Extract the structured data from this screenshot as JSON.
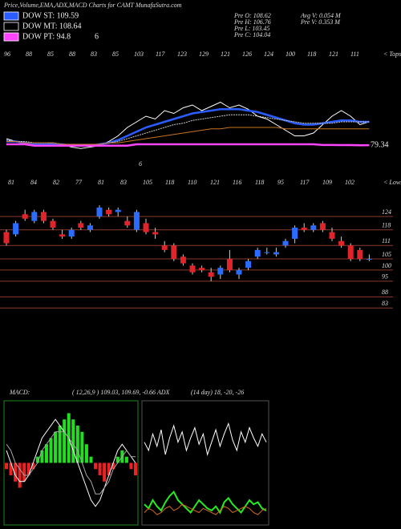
{
  "header": {
    "title": "Price,Volume,EMA,ADX,MACD Charts for CAMT MunafaSutra.com",
    "legend": [
      {
        "label": "DOW ST: 109.59",
        "color": "#2a5cff"
      },
      {
        "label": "DOW MT: 108.64",
        "color": "#000000"
      },
      {
        "label": "DOW PT: 94.8",
        "color": "#ff44ff"
      }
    ],
    "legend_extra": "6",
    "stats": [
      "Pre O: 108.62",
      "Pre H: 106.76",
      "Pre L: 103.45",
      "Pre C: 104.04"
    ],
    "volume": [
      "Avg V: 0.054 M",
      "Pre V: 0.353 M"
    ]
  },
  "chart_data": [
    {
      "type": "line",
      "tops": [
        96,
        88,
        85,
        88,
        83,
        85,
        103,
        117,
        123,
        129,
        121,
        126,
        124,
        100,
        118,
        121,
        111
      ],
      "tops_label": "< Tops",
      "note": "6",
      "ylim": [
        60,
        140
      ],
      "series": [
        {
          "color": "#ffffff",
          "values": [
            84,
            82,
            80,
            79,
            80,
            81,
            80,
            78,
            77,
            78,
            79,
            82,
            86,
            92,
            96,
            100,
            98,
            104,
            102,
            106,
            108,
            104,
            107,
            110,
            106,
            108,
            105,
            100,
            98,
            94,
            90,
            86,
            86,
            88,
            94,
            100,
            104,
            100,
            94,
            96
          ]
        },
        {
          "color": "#2a5cff",
          "values": [
            82,
            82,
            81,
            80,
            80,
            80,
            80,
            79,
            79,
            79,
            80,
            81,
            83,
            86,
            89,
            92,
            94,
            96,
            98,
            100,
            102,
            103,
            104,
            105,
            105,
            105,
            104,
            103,
            101,
            99,
            97,
            95,
            94,
            94,
            95,
            96,
            97,
            97,
            96,
            96
          ]
        },
        {
          "color": "#cccccc",
          "values": [
            83,
            82,
            82,
            81,
            81,
            81,
            80,
            80,
            80,
            80,
            80,
            81,
            82,
            84,
            86,
            88,
            90,
            92,
            94,
            95,
            97,
            98,
            99,
            100,
            101,
            101,
            101,
            100,
            99,
            98,
            97,
            96,
            95,
            95,
            95,
            95,
            96,
            96,
            96,
            96
          ]
        },
        {
          "color": "#c8751e",
          "values": [
            82,
            82,
            81,
            81,
            81,
            81,
            80,
            80,
            80,
            80,
            80,
            81,
            81,
            82,
            83,
            84,
            85,
            86,
            87,
            88,
            89,
            90,
            91,
            91,
            92,
            92,
            92,
            92,
            92,
            92,
            91,
            91,
            91,
            91,
            91,
            91,
            91,
            91,
            91,
            91
          ]
        },
        {
          "color": "#ff44ff",
          "values": [
            80,
            80,
            80,
            79,
            79,
            79,
            79,
            79,
            79,
            79,
            79,
            79,
            79,
            79,
            80,
            80,
            80,
            80,
            80,
            80,
            80,
            80,
            80,
            80,
            80,
            80,
            80,
            80,
            80,
            80,
            80,
            80,
            80,
            80,
            79.5,
            79.5,
            79.4,
            79.4,
            79.3,
            79.34
          ]
        }
      ]
    },
    {
      "type": "candlestick",
      "lows": [
        81,
        84,
        82,
        77,
        81,
        83,
        105,
        118,
        110,
        121,
        116,
        118,
        95,
        117,
        109,
        102
      ],
      "lows_label": "< Lows",
      "ylim": [
        63,
        133
      ],
      "yticks": [
        124,
        118,
        111,
        105,
        100,
        95,
        88,
        83
      ],
      "open": [
        117,
        116,
        125,
        122,
        126,
        122,
        116,
        115,
        121,
        118,
        124,
        127,
        126,
        122,
        118,
        121,
        117,
        111,
        111,
        106,
        102,
        101,
        99,
        98,
        105,
        98,
        101,
        106,
        108,
        107,
        111,
        114,
        119,
        118,
        121,
        117,
        113,
        111,
        109,
        105
      ],
      "high": [
        118,
        122,
        127,
        127,
        127,
        123,
        118,
        119,
        122,
        121,
        129,
        128,
        128,
        124,
        127,
        123,
        119,
        113,
        112,
        107,
        103,
        102,
        101,
        102,
        109,
        101,
        105,
        110,
        110,
        110,
        114,
        120,
        121,
        121,
        122,
        119,
        115,
        112,
        110,
        107
      ],
      "low": [
        111,
        115,
        122,
        121,
        121,
        118,
        114,
        114,
        118,
        117,
        123,
        124,
        124,
        119,
        117,
        116,
        114,
        108,
        104,
        102,
        98,
        99,
        95,
        96,
        99,
        96,
        100,
        105,
        107,
        106,
        110,
        112,
        117,
        117,
        117,
        113,
        110,
        104,
        104,
        104
      ],
      "close": [
        112,
        121,
        123,
        126,
        122,
        119,
        115,
        118,
        119,
        120,
        128,
        125,
        127,
        120,
        126,
        117,
        116,
        109,
        105,
        103,
        99,
        100,
        97,
        101,
        100,
        100,
        104,
        109,
        108,
        108,
        113,
        119,
        118,
        120,
        118,
        114,
        111,
        105,
        105,
        105
      ]
    },
    {
      "type": "macd",
      "title": "MACD:",
      "params": "( 12,26,9 ) 109.03, 109.69, -0.66 ADX",
      "ylim": [
        -10,
        10
      ],
      "histogram": [
        -1,
        -2,
        -3,
        -4,
        -3,
        -2,
        -1,
        1,
        2,
        3,
        4,
        5,
        6,
        7,
        8,
        7,
        6,
        5,
        3,
        1,
        -1,
        -2,
        -3,
        -2,
        -1,
        1,
        2,
        1,
        -1,
        -2
      ],
      "macd": [
        2,
        0,
        -2,
        -3,
        -3,
        -2,
        0,
        2,
        4,
        5,
        6,
        7,
        6,
        5,
        4,
        2,
        0,
        -2,
        -4,
        -6,
        -7,
        -6,
        -4,
        -2,
        0,
        2,
        3,
        2,
        1,
        0
      ],
      "signal": [
        3,
        2,
        0,
        -1,
        -2,
        -2,
        -1,
        0,
        2,
        3,
        4,
        5,
        5,
        5,
        4,
        3,
        2,
        0,
        -2,
        -3,
        -5,
        -5,
        -4,
        -3,
        -1,
        0,
        1,
        2,
        1,
        1
      ]
    },
    {
      "type": "adx",
      "params": "(14 day) 18, -20, -26",
      "ylim": [
        0,
        60
      ],
      "adx": [
        40,
        36,
        44,
        38,
        46,
        34,
        42,
        48,
        40,
        45,
        36,
        42,
        47,
        39,
        44,
        34,
        40,
        46,
        38,
        44,
        49,
        41,
        36,
        45,
        40,
        47,
        42,
        38,
        44,
        40
      ],
      "plus_di": [
        10,
        8,
        12,
        9,
        7,
        11,
        14,
        16,
        12,
        10,
        8,
        6,
        9,
        12,
        10,
        8,
        7,
        9,
        6,
        11,
        13,
        10,
        8,
        6,
        9,
        12,
        10,
        11,
        8,
        7
      ],
      "minus_di": [
        6,
        8,
        7,
        5,
        6,
        8,
        9,
        7,
        8,
        10,
        9,
        8,
        7,
        6,
        8,
        7,
        6,
        5,
        7,
        9,
        8,
        6,
        7,
        8,
        9,
        8,
        6,
        5,
        7,
        8
      ]
    }
  ]
}
